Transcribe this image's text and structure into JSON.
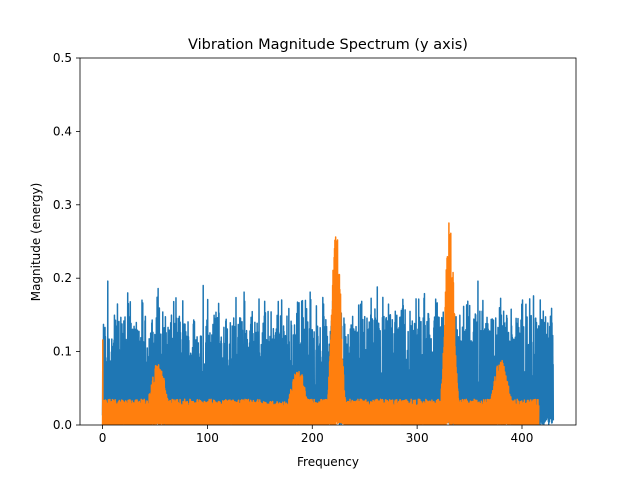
{
  "chart_data": {
    "type": "line",
    "title": "Vibration Magnitude Spectrum (y axis)",
    "xlabel": "Frequency",
    "ylabel": "Magnitude (energy)",
    "xlim": [
      -21.5,
      451.5
    ],
    "ylim": [
      0,
      0.5
    ],
    "x_ticks": [
      0,
      100,
      200,
      300,
      400
    ],
    "y_ticks": [
      0.0,
      0.1,
      0.2,
      0.3,
      0.4,
      0.5
    ],
    "x_tick_labels": [
      "0",
      "100",
      "200",
      "300",
      "400"
    ],
    "y_tick_labels": [
      "0.0",
      "0.1",
      "0.2",
      "0.3",
      "0.4",
      "0.5"
    ],
    "grid": false,
    "series": [
      {
        "color": "#1f77b4",
        "x_range": [
          0,
          430
        ],
        "noise_floor": 0.02,
        "typical_peak": 0.15,
        "max_peaks": [
          [
            5,
            0.196
          ],
          [
            24,
            0.18
          ],
          [
            53,
            0.186
          ],
          [
            96,
            0.19
          ],
          [
            135,
            0.181
          ],
          [
            198,
            0.181
          ],
          [
            262,
            0.188
          ],
          [
            307,
            0.179
          ],
          [
            358,
            0.196
          ],
          [
            411,
            0.176
          ]
        ]
      },
      {
        "color": "#ff7f0e",
        "x_range": [
          0,
          416
        ],
        "start_spike": 0.116,
        "baseline": 0.035,
        "peaks": [
          {
            "x": 53,
            "height": 0.087
          },
          {
            "x": 186,
            "height": 0.082
          },
          {
            "x": 223,
            "height": 0.281
          },
          {
            "x": 331,
            "height": 0.282
          },
          {
            "x": 380,
            "height": 0.092
          }
        ]
      }
    ]
  }
}
